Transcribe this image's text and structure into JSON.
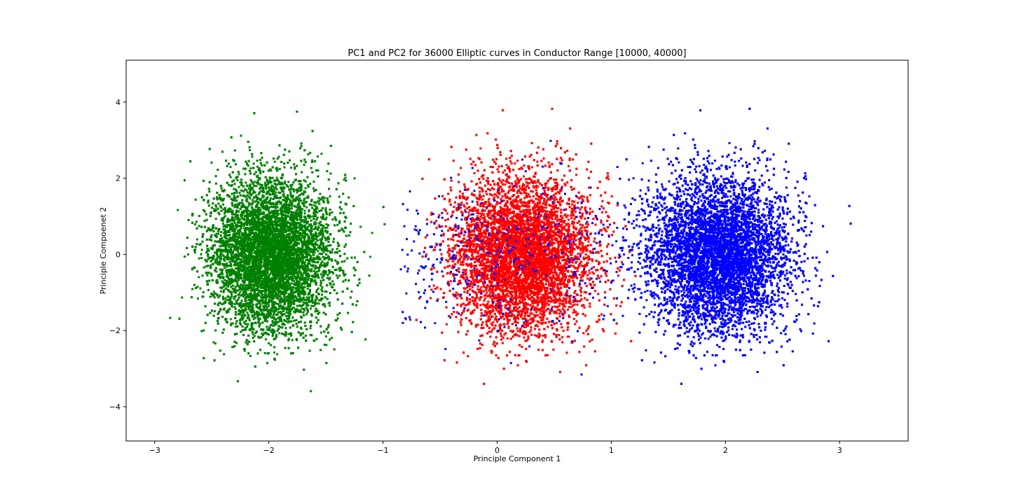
{
  "chart_data": {
    "type": "scatter",
    "title": "PC1 and PC2 for 36000 Elliptic curves in Conductor Range [10000, 40000]",
    "xlabel": "Principle Component 1",
    "ylabel": "Principle Compoenet 2",
    "xlim": [
      -3.25,
      3.6
    ],
    "ylim": [
      -4.9,
      5.1
    ],
    "xticks": [
      -3,
      -2,
      -1,
      0,
      1,
      2,
      3
    ],
    "xtick_labels": [
      "−3",
      "−2",
      "−1",
      "0",
      "1",
      "2",
      "3"
    ],
    "yticks": [
      -4,
      -2,
      0,
      2,
      4
    ],
    "ytick_labels": [
      "−4",
      "−2",
      "0",
      "2",
      "4"
    ],
    "grid": false,
    "legend": "none",
    "total_points": 36000,
    "series": [
      {
        "color": "#008000",
        "count": 12000,
        "center": [
          -1.98,
          0.0
        ],
        "spread": [
          0.26,
          0.98
        ],
        "extent": {
          "x": [
            -2.95,
            -0.85
          ],
          "y": [
            -4.45,
            4.28
          ]
        }
      },
      {
        "color": "#ff0000",
        "count": 12000,
        "center": [
          0.22,
          0.0
        ],
        "spread": [
          0.3,
          1.0
        ],
        "extent": {
          "x": [
            -0.85,
            1.25
          ],
          "y": [
            -3.9,
            4.65
          ]
        }
      },
      {
        "color": "#0000ff",
        "count": 12000,
        "center": [
          1.95,
          0.0
        ],
        "spread": [
          0.3,
          1.0
        ],
        "extent": {
          "x": [
            -0.85,
            3.3
          ],
          "y": [
            -3.8,
            4.6
          ]
        }
      }
    ]
  }
}
